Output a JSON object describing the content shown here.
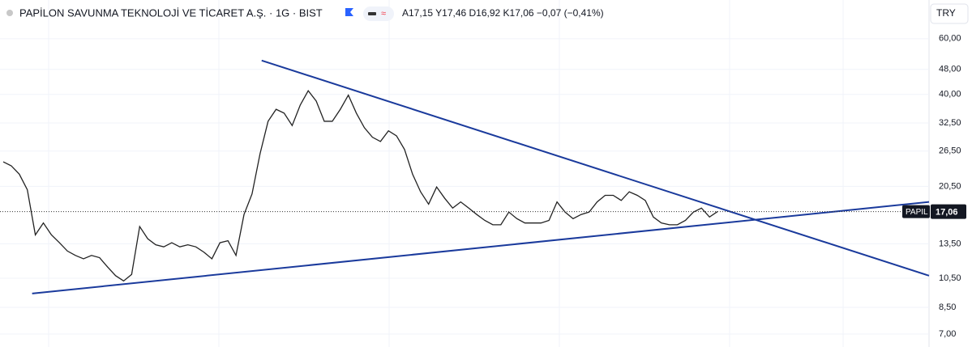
{
  "header": {
    "title": "PAPİLON SAVUNMA TEKNOLOJİ VE TİCARET A.Ş. · 1G · BIST",
    "ohlc": "A17,15 Y17,46 D16,92 K17,06 −0,07 (−0,41%)",
    "currency": "TRY"
  },
  "chart_data": {
    "type": "line",
    "log_scale": true,
    "grid": true,
    "color": "#222222",
    "categories": [
      null,
      null,
      null,
      null,
      null,
      null,
      null,
      null,
      null,
      null,
      null,
      null,
      null,
      null,
      null,
      null,
      null,
      null,
      null,
      null,
      null,
      null,
      null,
      null,
      null,
      null,
      null,
      null,
      null,
      null,
      null,
      null,
      null,
      null,
      null,
      null,
      null,
      null,
      null,
      null,
      null,
      null,
      null,
      null,
      null,
      null,
      null,
      null,
      null,
      null,
      null,
      null,
      null,
      null,
      null,
      null,
      null,
      null,
      null,
      null,
      null,
      null,
      null,
      null,
      null,
      null,
      null,
      null,
      null,
      null,
      null,
      null,
      null,
      null,
      null,
      null,
      null,
      null,
      null,
      null,
      null,
      null,
      null,
      null,
      null,
      null,
      null,
      null,
      null,
      null
    ],
    "series": [
      {
        "name": "PAPIL",
        "values": [
          24.5,
          23.8,
          22.4,
          20.0,
          14.4,
          15.7,
          14.4,
          13.6,
          12.8,
          12.4,
          12.1,
          12.4,
          12.2,
          11.4,
          10.7,
          10.3,
          10.8,
          15.3,
          14.0,
          13.4,
          13.2,
          13.6,
          13.2,
          13.4,
          13.2,
          12.7,
          12.1,
          13.6,
          13.8,
          12.4,
          16.7,
          19.4,
          26.0,
          32.9,
          35.9,
          34.9,
          31.9,
          37.0,
          41.1,
          38.1,
          32.9,
          32.9,
          35.9,
          39.8,
          34.9,
          31.4,
          29.3,
          28.4,
          30.7,
          29.6,
          26.8,
          22.4,
          19.7,
          18.0,
          20.4,
          18.8,
          17.5,
          18.3,
          17.5,
          16.7,
          16.0,
          15.5,
          15.5,
          17.0,
          16.2,
          15.7,
          15.7,
          15.7,
          16.0,
          18.3,
          17.0,
          16.2,
          16.7,
          17.0,
          18.3,
          19.2,
          19.2,
          18.5,
          19.7,
          19.2,
          18.5,
          16.4,
          15.7,
          15.5,
          15.5,
          16.0,
          17.0,
          17.5,
          16.4,
          17.06
        ]
      }
    ],
    "last_price": {
      "value": 17.06,
      "label": "17,06"
    },
    "trendline_color": "#1a3a9c",
    "trendlines": [
      {
        "x": [
          32.2,
          115.5
        ],
        "y": [
          51.2,
          10.7
        ]
      },
      {
        "x": [
          3.6,
          115.5
        ],
        "y": [
          9.4,
          18.3
        ]
      }
    ],
    "ylim": [
      6.37,
      79.5
    ],
    "yticks": [
      {
        "value": 7,
        "label": "7,00"
      },
      {
        "value": 8.5,
        "label": "8,50"
      },
      {
        "value": 10.5,
        "label": "10,50"
      },
      {
        "value": 13.5,
        "label": "13,50"
      },
      {
        "value": 20.5,
        "label": "20,50"
      },
      {
        "value": 26.5,
        "label": "26,50"
      },
      {
        "value": 32.5,
        "label": "32,50"
      },
      {
        "value": 40,
        "label": "40,00"
      },
      {
        "value": 48,
        "label": "48,00"
      },
      {
        "value": 60,
        "label": "60,00"
      }
    ]
  }
}
